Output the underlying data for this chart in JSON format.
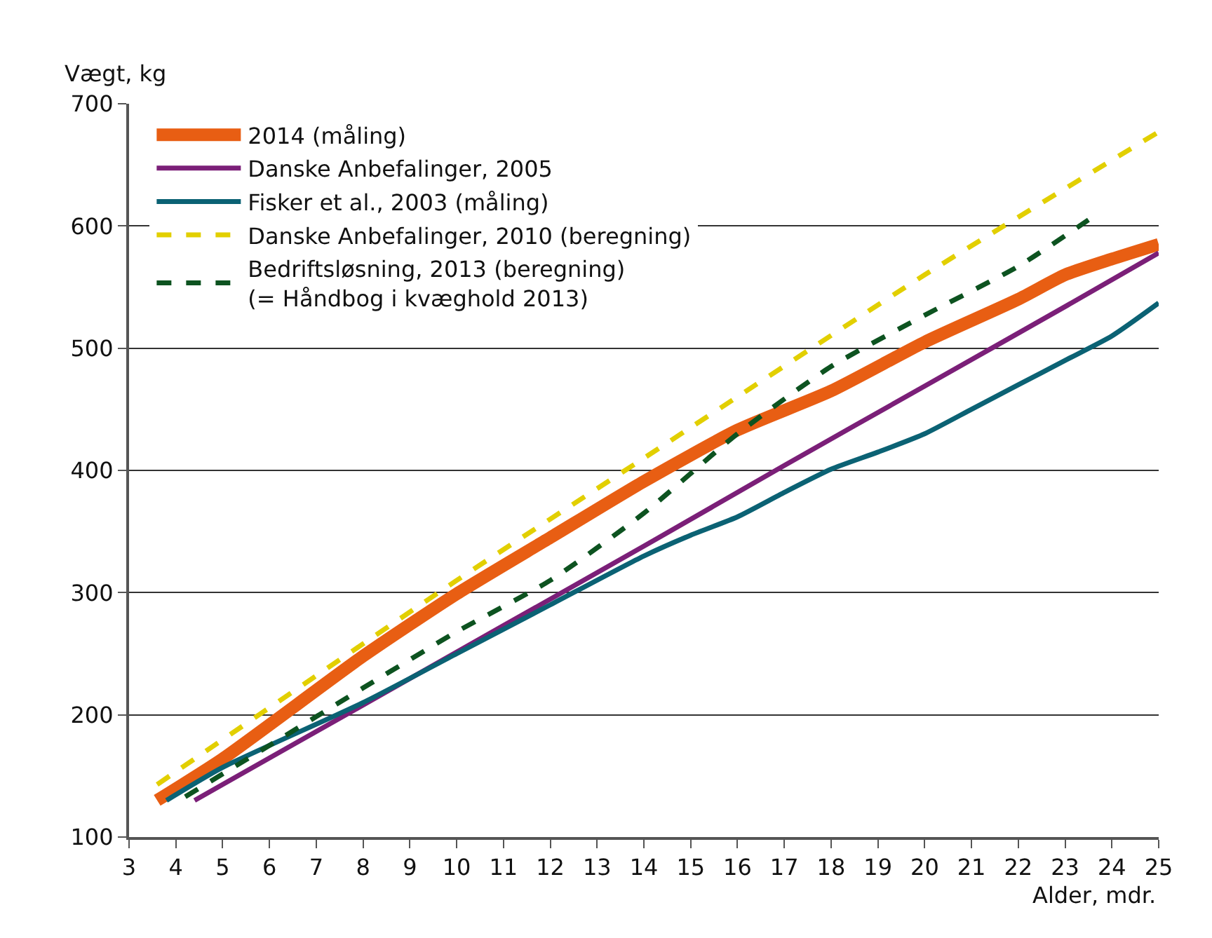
{
  "chart_data": {
    "type": "line",
    "xlabel": "Alder, mdr.",
    "ylabel": "Vægt, kg",
    "xlim": [
      3,
      25
    ],
    "xticks": [
      3,
      4,
      5,
      6,
      7,
      8,
      9,
      10,
      11,
      12,
      13,
      14,
      15,
      16,
      17,
      18,
      19,
      20,
      21,
      22,
      23,
      24,
      25
    ],
    "ylim": [
      100,
      700
    ],
    "yticks": [
      100,
      200,
      300,
      400,
      500,
      600,
      700
    ],
    "grid": "y",
    "legend": "top left",
    "marker": "none",
    "series": [
      {
        "name": "2014 (måling)",
        "color": "#e85e13",
        "line_style": "solid",
        "x": [
          3.6,
          5,
          8,
          10,
          12,
          14,
          16,
          18,
          20,
          22,
          23,
          24,
          25
        ],
        "values": [
          130,
          164,
          248,
          299,
          345,
          391,
          433,
          465,
          505,
          540,
          560,
          573,
          585
        ]
      },
      {
        "name": "Danske Anbefalinger, 2005",
        "color": "#7b1f78",
        "line_style": "solid",
        "x": [
          4.4,
          5,
          8,
          11,
          14,
          17,
          20,
          23,
          25
        ],
        "values": [
          130,
          143,
          208,
          273,
          338,
          404,
          469,
          534,
          578
        ]
      },
      {
        "name": "Fisker et al., 2003 (måling)",
        "color": "#0b6274",
        "line_style": "solid",
        "x": [
          3.8,
          5,
          8,
          10,
          12,
          14,
          15,
          16,
          17,
          18,
          19,
          20,
          21,
          22,
          23,
          24,
          25
        ],
        "values": [
          130,
          157,
          210,
          250,
          290,
          330,
          347,
          362,
          382,
          401,
          415,
          430,
          450,
          470,
          490,
          510,
          537
        ]
      },
      {
        "name": "Danske Anbefalinger, 2010 (beregning)",
        "color": "#e2cf00",
        "line_style": "dashed",
        "x": [
          3.6,
          10,
          14,
          20,
          25
        ],
        "values": [
          143,
          310,
          410,
          560,
          677
        ]
      },
      {
        "name": "Bedriftsløsning, 2013 (beregning)\n(= Håndbog i kvæghold 2013)",
        "color": "#0d5320",
        "line_style": "dashed",
        "x": [
          4.2,
          6,
          8,
          10,
          12,
          14,
          16,
          18,
          20,
          22,
          23.5
        ],
        "values": [
          133,
          175,
          222,
          268,
          310,
          365,
          430,
          485,
          527,
          567,
          605
        ]
      }
    ]
  }
}
